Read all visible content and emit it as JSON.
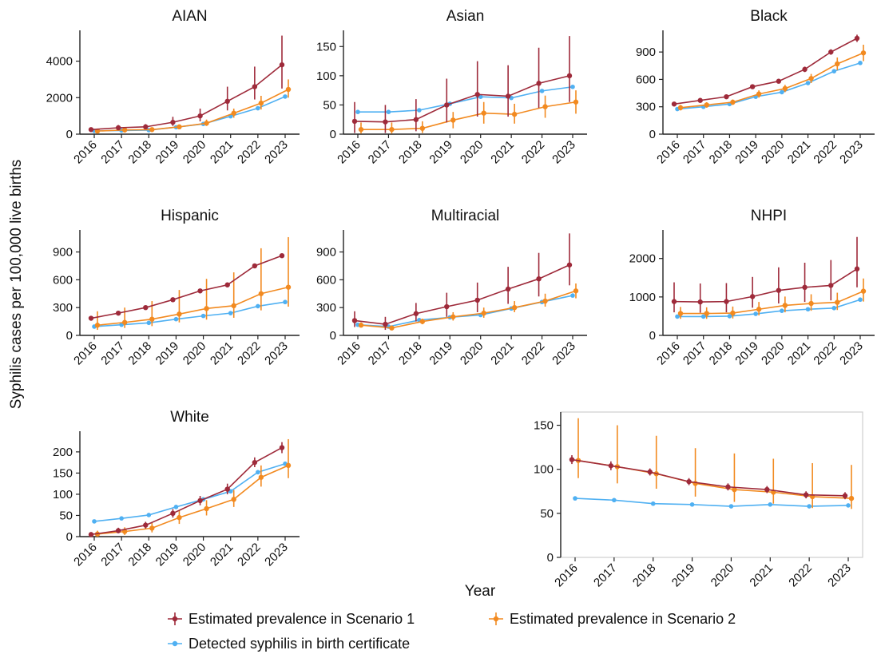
{
  "figure": {
    "y_axis_label": "Syphilis cases per 100,000 live births",
    "x_axis_label": "Year"
  },
  "legend": [
    {
      "key": "s1",
      "label": "Estimated prevalence in Scenario 1",
      "color": "#9e2a3a"
    },
    {
      "key": "s2",
      "label": "Estimated prevalence in Scenario 2",
      "color": "#f28a20"
    },
    {
      "key": "bc",
      "label": "Detected syphilis in birth certificate",
      "color": "#4fb0f2"
    }
  ],
  "chart_data": [
    {
      "type": "line",
      "title": "AIAN",
      "x": [
        "2016",
        "2017",
        "2018",
        "2019",
        "2020",
        "2021",
        "2022",
        "2023"
      ],
      "ylim": [
        0,
        5600
      ],
      "yticks": [
        0,
        2000,
        4000
      ],
      "series": [
        {
          "name": "Estimated prevalence in Scenario 1",
          "values": [
            250,
            350,
            400,
            650,
            1000,
            1800,
            2600,
            3800
          ],
          "lower": [
            150,
            250,
            300,
            450,
            700,
            1300,
            1900,
            2500
          ],
          "upper": [
            350,
            500,
            550,
            950,
            1400,
            2600,
            3700,
            5400
          ]
        },
        {
          "name": "Estimated prevalence in Scenario 2",
          "values": [
            170,
            230,
            250,
            400,
            600,
            1150,
            1700,
            2450
          ],
          "lower": [
            120,
            160,
            180,
            300,
            450,
            900,
            1350,
            2000
          ],
          "upper": [
            230,
            320,
            350,
            520,
            800,
            1400,
            2100,
            3000
          ]
        },
        {
          "name": "Detected syphilis in birth certificate",
          "values": [
            180,
            200,
            220,
            380,
            560,
            980,
            1420,
            2060
          ]
        }
      ]
    },
    {
      "type": "line",
      "title": "Asian",
      "x": [
        "2016",
        "2017",
        "2018",
        "2019",
        "2020",
        "2021",
        "2022",
        "2023"
      ],
      "ylim": [
        0,
        175
      ],
      "yticks": [
        0,
        50,
        100,
        150
      ],
      "series": [
        {
          "name": "Estimated prevalence in Scenario 1",
          "values": [
            22,
            21,
            25,
            50,
            68,
            65,
            87,
            100
          ],
          "lower": [
            2,
            2,
            5,
            20,
            30,
            30,
            45,
            55
          ],
          "upper": [
            55,
            50,
            60,
            95,
            125,
            118,
            148,
            168
          ]
        },
        {
          "name": "Estimated prevalence in Scenario 2",
          "values": [
            8,
            8,
            10,
            24,
            36,
            34,
            47,
            55
          ],
          "lower": [
            1,
            1,
            2,
            10,
            18,
            18,
            28,
            35
          ],
          "upper": [
            20,
            20,
            22,
            38,
            55,
            52,
            66,
            75
          ]
        },
        {
          "name": "Detected syphilis in birth certificate",
          "values": [
            38,
            38,
            41,
            52,
            64,
            62,
            74,
            81
          ]
        }
      ]
    },
    {
      "type": "line",
      "title": "Black",
      "x": [
        "2016",
        "2017",
        "2018",
        "2019",
        "2020",
        "2021",
        "2022",
        "2023"
      ],
      "ylim": [
        0,
        1120
      ],
      "yticks": [
        0,
        300,
        600,
        900
      ],
      "series": [
        {
          "name": "Estimated prevalence in Scenario 1",
          "values": [
            330,
            370,
            410,
            520,
            580,
            710,
            900,
            1050
          ],
          "lower": [
            310,
            350,
            390,
            495,
            555,
            680,
            870,
            1010
          ],
          "upper": [
            350,
            390,
            430,
            545,
            605,
            740,
            930,
            1090
          ]
        },
        {
          "name": "Estimated prevalence in Scenario 2",
          "values": [
            290,
            320,
            350,
            440,
            500,
            610,
            770,
            890
          ],
          "lower": [
            260,
            290,
            320,
            400,
            460,
            560,
            700,
            800
          ],
          "upper": [
            320,
            350,
            380,
            480,
            540,
            660,
            840,
            980
          ]
        },
        {
          "name": "Detected syphilis in birth certificate",
          "values": [
            275,
            300,
            330,
            410,
            460,
            560,
            690,
            780
          ]
        }
      ]
    },
    {
      "type": "line",
      "title": "Hispanic",
      "x": [
        "2016",
        "2017",
        "2018",
        "2019",
        "2020",
        "2021",
        "2022",
        "2023"
      ],
      "ylim": [
        0,
        1120
      ],
      "yticks": [
        0,
        300,
        600,
        900
      ],
      "series": [
        {
          "name": "Estimated prevalence in Scenario 1",
          "values": [
            185,
            240,
            300,
            385,
            480,
            545,
            750,
            860
          ],
          "lower": [
            175,
            230,
            290,
            375,
            470,
            535,
            735,
            845
          ],
          "upper": [
            195,
            250,
            310,
            395,
            490,
            555,
            765,
            875
          ]
        },
        {
          "name": "Estimated prevalence in Scenario 2",
          "values": [
            110,
            140,
            175,
            230,
            290,
            320,
            450,
            520
          ],
          "lower": [
            60,
            80,
            100,
            140,
            170,
            190,
            270,
            310
          ],
          "upper": [
            260,
            300,
            370,
            490,
            610,
            680,
            940,
            1060
          ]
        },
        {
          "name": "Detected syphilis in birth certificate",
          "values": [
            95,
            115,
            135,
            175,
            210,
            240,
            315,
            360
          ]
        }
      ]
    },
    {
      "type": "line",
      "title": "Multiracial",
      "x": [
        "2016",
        "2017",
        "2018",
        "2019",
        "2020",
        "2021",
        "2022",
        "2023"
      ],
      "ylim": [
        0,
        1120
      ],
      "yticks": [
        0,
        300,
        600,
        900
      ],
      "series": [
        {
          "name": "Estimated prevalence in Scenario 1",
          "values": [
            160,
            120,
            235,
            310,
            380,
            500,
            610,
            760
          ],
          "lower": [
            90,
            60,
            150,
            200,
            250,
            340,
            420,
            540
          ],
          "upper": [
            260,
            200,
            350,
            460,
            570,
            740,
            890,
            1100
          ]
        },
        {
          "name": "Estimated prevalence in Scenario 2",
          "values": [
            110,
            80,
            150,
            200,
            240,
            300,
            370,
            480
          ],
          "lower": [
            90,
            60,
            120,
            160,
            190,
            250,
            310,
            400
          ],
          "upper": [
            140,
            100,
            180,
            250,
            300,
            370,
            450,
            560
          ]
        },
        {
          "name": "Detected syphilis in birth certificate",
          "values": [
            115,
            95,
            165,
            195,
            220,
            290,
            360,
            430
          ]
        }
      ]
    },
    {
      "type": "line",
      "title": "NHPI",
      "x": [
        "2016",
        "2017",
        "2018",
        "2019",
        "2020",
        "2021",
        "2022",
        "2023"
      ],
      "ylim": [
        0,
        2700
      ],
      "yticks": [
        0,
        1000,
        2000
      ],
      "series": [
        {
          "name": "Estimated prevalence in Scenario 1",
          "values": [
            880,
            870,
            880,
            1010,
            1170,
            1250,
            1300,
            1730
          ],
          "lower": [
            600,
            590,
            600,
            720,
            830,
            870,
            910,
            1250
          ],
          "upper": [
            1380,
            1350,
            1360,
            1520,
            1770,
            1890,
            1960,
            2560
          ]
        },
        {
          "name": "Estimated prevalence in Scenario 2",
          "values": [
            570,
            570,
            580,
            680,
            780,
            830,
            860,
            1150
          ],
          "lower": [
            430,
            430,
            440,
            520,
            600,
            640,
            660,
            880
          ],
          "upper": [
            740,
            730,
            750,
            870,
            1010,
            1070,
            1110,
            1480
          ]
        },
        {
          "name": "Detected syphilis in birth certificate",
          "values": [
            490,
            490,
            500,
            560,
            640,
            680,
            710,
            930
          ]
        }
      ]
    },
    {
      "type": "line",
      "title": "White",
      "x": [
        "2016",
        "2017",
        "2018",
        "2019",
        "2020",
        "2021",
        "2022",
        "2023"
      ],
      "ylim": [
        0,
        245
      ],
      "yticks": [
        0,
        50,
        100,
        150,
        200
      ],
      "series": [
        {
          "name": "Estimated prevalence in Scenario 1",
          "values": [
            5,
            14,
            27,
            55,
            85,
            112,
            175,
            210
          ],
          "lower": [
            2,
            8,
            19,
            45,
            74,
            100,
            164,
            197
          ],
          "upper": [
            9,
            21,
            35,
            65,
            96,
            125,
            187,
            223
          ]
        },
        {
          "name": "Estimated prevalence in Scenario 2",
          "values": [
            6,
            12,
            20,
            45,
            66,
            88,
            140,
            168
          ],
          "lower": [
            1,
            4,
            10,
            30,
            50,
            70,
            118,
            138
          ],
          "upper": [
            14,
            22,
            32,
            62,
            86,
            110,
            168,
            230
          ]
        },
        {
          "name": "Detected syphilis in birth certificate",
          "values": [
            36,
            43,
            51,
            70,
            88,
            107,
            152,
            172
          ]
        }
      ]
    },
    {
      "type": "line",
      "title": "",
      "x": [
        "2016",
        "2017",
        "2018",
        "2019",
        "2020",
        "2021",
        "2022",
        "2023"
      ],
      "ylim": [
        0,
        165
      ],
      "yticks": [
        0,
        50,
        100,
        150
      ],
      "framed": true,
      "series": [
        {
          "name": "Estimated prevalence in Scenario 1",
          "values": [
            111,
            104,
            97,
            86,
            80,
            77,
            71,
            70
          ],
          "lower": [
            106,
            99,
            93,
            82,
            76,
            73,
            67,
            66
          ],
          "upper": [
            116,
            109,
            101,
            90,
            84,
            81,
            75,
            74
          ]
        },
        {
          "name": "Estimated prevalence in Scenario 2",
          "values": [
            110,
            103,
            95,
            84,
            77,
            74,
            69,
            67
          ],
          "lower": [
            90,
            84,
            78,
            69,
            63,
            61,
            56,
            55
          ],
          "upper": [
            158,
            150,
            138,
            124,
            118,
            112,
            107,
            105
          ]
        },
        {
          "name": "Detected syphilis in birth certificate",
          "values": [
            67,
            65,
            61,
            60,
            58,
            60,
            58,
            59
          ]
        }
      ]
    }
  ]
}
